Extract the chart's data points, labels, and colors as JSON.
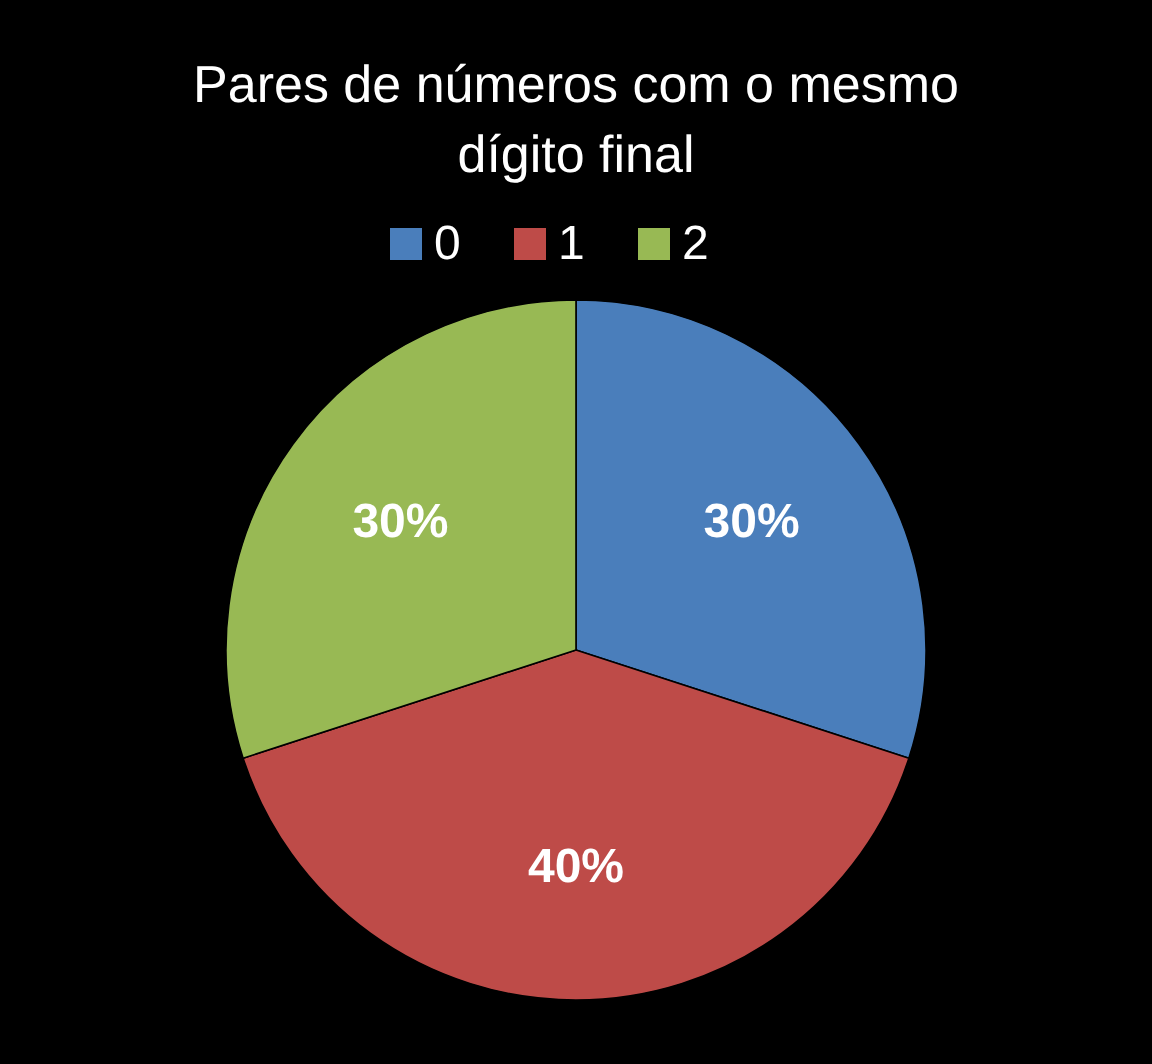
{
  "chart_data": {
    "type": "pie",
    "title": "Pares de números com o mesmo dígito final",
    "categories": [
      "0",
      "1",
      "2"
    ],
    "values": [
      30,
      40,
      30
    ],
    "colors": [
      "#4a7ebb",
      "#be4b48",
      "#98b954"
    ],
    "value_labels": [
      "30%",
      "40%",
      "30%"
    ],
    "legend": "top"
  }
}
